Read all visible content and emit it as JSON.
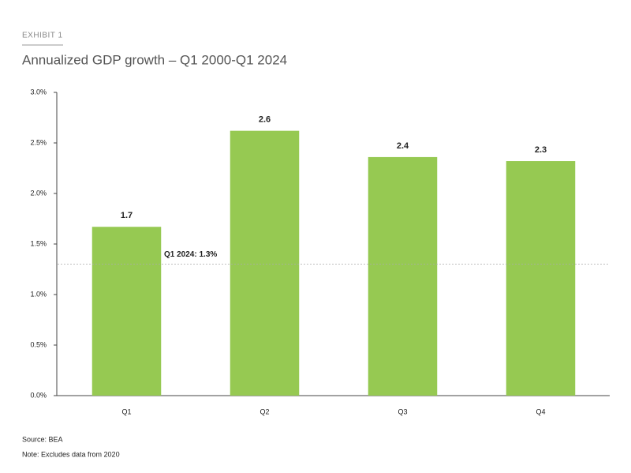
{
  "exhibit": "EXHIBIT 1",
  "chart_data": {
    "type": "bar",
    "title": "Annualized GDP growth – Q1 2000-Q1 2024",
    "categories": [
      "Q1",
      "Q2",
      "Q3",
      "Q4"
    ],
    "values": [
      1.67,
      2.62,
      2.36,
      2.32
    ],
    "value_labels": [
      "1.7",
      "2.6",
      "2.4",
      "2.3"
    ],
    "color": "#96c952",
    "ylim": [
      0,
      3
    ],
    "yticks": [
      {
        "value": 0,
        "label": "0.0%"
      },
      {
        "value": 0.5,
        "label": "0.5%"
      },
      {
        "value": 1,
        "label": "1.0%"
      },
      {
        "value": 1.5,
        "label": "1.5%"
      },
      {
        "value": 2,
        "label": "2.0%"
      },
      {
        "value": 2.5,
        "label": "2.5%"
      },
      {
        "value": 3,
        "label": "3.0%"
      }
    ],
    "grid": false,
    "reference_line": {
      "value": 1.3,
      "label": "Q1 2024: 1.3%"
    }
  },
  "source": "Source: BEA",
  "note": "Note: Excludes data from 2020"
}
